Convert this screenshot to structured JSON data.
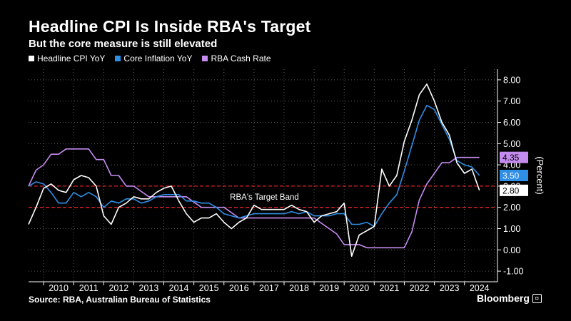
{
  "header": {
    "title": "Headline CPI Is Inside RBA's Target",
    "subtitle": "But the core measure is still elevated"
  },
  "footer": {
    "source": "Source:  RBA, Australian Bureau of Statistics",
    "brand": "Bloomberg"
  },
  "chart_data": {
    "type": "line",
    "ylabel": "(Percent)",
    "ylim": [
      -1.5,
      8.5
    ],
    "yticks": [
      -1,
      0,
      1,
      2,
      3,
      4,
      5,
      6,
      7,
      8
    ],
    "ytick_labels": [
      "-1.00",
      "0.00",
      "1.00",
      "2.00",
      "3.00",
      "4.00",
      "5.00",
      "6.00",
      "7.00",
      "8.00"
    ],
    "xlim": [
      2009.5,
      2025.1
    ],
    "x_categories": [
      "2010",
      "2011",
      "2012",
      "2013",
      "2014",
      "2015",
      "2016",
      "2017",
      "2018",
      "2019",
      "2020",
      "2021",
      "2022",
      "2023",
      "2024"
    ],
    "grid": true,
    "legend_position": "top-left",
    "target_band": {
      "label": "RBA's Target Band",
      "lower": 2,
      "upper": 3,
      "color": "#e0202a"
    },
    "series": [
      {
        "name": "Headline CPI YoY",
        "color": "#ffffff",
        "end_label": "2.80",
        "x": [
          2009.5,
          2009.75,
          2010.0,
          2010.25,
          2010.5,
          2010.75,
          2011.0,
          2011.25,
          2011.5,
          2011.75,
          2012.0,
          2012.25,
          2012.5,
          2012.75,
          2013.0,
          2013.25,
          2013.5,
          2013.75,
          2014.0,
          2014.25,
          2014.5,
          2014.75,
          2015.0,
          2015.25,
          2015.5,
          2015.75,
          2016.0,
          2016.25,
          2016.5,
          2016.75,
          2017.0,
          2017.25,
          2017.5,
          2017.75,
          2018.0,
          2018.25,
          2018.5,
          2018.75,
          2019.0,
          2019.25,
          2019.5,
          2019.75,
          2020.0,
          2020.25,
          2020.5,
          2020.75,
          2021.0,
          2021.25,
          2021.5,
          2021.75,
          2022.0,
          2022.25,
          2022.5,
          2022.75,
          2023.0,
          2023.25,
          2023.5,
          2023.75,
          2024.0,
          2024.25,
          2024.5
        ],
        "values": [
          1.2,
          2.0,
          2.9,
          3.1,
          2.8,
          2.7,
          3.3,
          3.5,
          3.4,
          3.0,
          1.6,
          1.2,
          2.0,
          2.2,
          2.5,
          2.4,
          2.4,
          2.7,
          2.9,
          3.0,
          2.3,
          1.7,
          1.3,
          1.5,
          1.5,
          1.7,
          1.3,
          1.0,
          1.3,
          1.5,
          2.1,
          1.9,
          1.9,
          1.9,
          1.9,
          2.1,
          1.9,
          1.8,
          1.3,
          1.6,
          1.7,
          1.8,
          2.2,
          -0.3,
          0.7,
          0.9,
          1.1,
          3.8,
          3.0,
          3.5,
          5.1,
          6.1,
          7.3,
          7.8,
          7.0,
          6.0,
          5.4,
          4.1,
          3.6,
          3.8,
          2.8
        ]
      },
      {
        "name": "Core Inflation YoY",
        "color": "#2f8fe6",
        "end_label": "3.50",
        "x": [
          2009.5,
          2009.75,
          2010.0,
          2010.25,
          2010.5,
          2010.75,
          2011.0,
          2011.25,
          2011.5,
          2011.75,
          2012.0,
          2012.25,
          2012.5,
          2012.75,
          2013.0,
          2013.25,
          2013.5,
          2013.75,
          2014.0,
          2014.25,
          2014.5,
          2014.75,
          2015.0,
          2015.25,
          2015.5,
          2015.75,
          2016.0,
          2016.25,
          2016.5,
          2016.75,
          2017.0,
          2017.25,
          2017.5,
          2017.75,
          2018.0,
          2018.25,
          2018.5,
          2018.75,
          2019.0,
          2019.25,
          2019.5,
          2019.75,
          2020.0,
          2020.25,
          2020.5,
          2020.75,
          2021.0,
          2021.25,
          2021.5,
          2021.75,
          2022.0,
          2022.25,
          2022.5,
          2022.75,
          2023.0,
          2023.25,
          2023.5,
          2023.75,
          2024.0,
          2024.25,
          2024.5
        ],
        "values": [
          3.0,
          3.2,
          3.1,
          2.7,
          2.2,
          2.2,
          2.7,
          2.5,
          2.7,
          2.5,
          2.0,
          2.3,
          2.2,
          2.4,
          2.4,
          2.2,
          2.3,
          2.5,
          2.6,
          2.6,
          2.6,
          2.3,
          2.3,
          2.2,
          2.2,
          2.0,
          1.7,
          1.6,
          1.5,
          1.6,
          1.7,
          1.7,
          1.7,
          1.7,
          1.7,
          1.8,
          1.7,
          1.8,
          1.6,
          1.6,
          1.6,
          1.7,
          1.7,
          1.2,
          1.2,
          1.3,
          1.1,
          1.7,
          2.2,
          2.6,
          3.7,
          4.9,
          6.1,
          6.8,
          6.6,
          5.9,
          5.2,
          4.2,
          4.0,
          3.9,
          3.5
        ]
      },
      {
        "name": "RBA Cash Rate",
        "color": "#c58cf0",
        "end_label": "4.35",
        "x": [
          2009.5,
          2009.75,
          2010.0,
          2010.25,
          2010.5,
          2010.75,
          2011.0,
          2011.25,
          2011.5,
          2011.75,
          2012.0,
          2012.25,
          2012.5,
          2012.75,
          2013.0,
          2013.25,
          2013.5,
          2013.75,
          2014.0,
          2014.25,
          2014.5,
          2014.75,
          2015.0,
          2015.25,
          2015.5,
          2015.75,
          2016.0,
          2016.25,
          2016.5,
          2016.75,
          2017.0,
          2017.25,
          2017.5,
          2017.75,
          2018.0,
          2018.25,
          2018.5,
          2018.75,
          2019.0,
          2019.25,
          2019.5,
          2019.75,
          2020.0,
          2020.25,
          2020.5,
          2020.75,
          2021.0,
          2021.25,
          2021.5,
          2021.75,
          2022.0,
          2022.25,
          2022.5,
          2022.75,
          2023.0,
          2023.25,
          2023.5,
          2023.75,
          2024.0,
          2024.25,
          2024.5
        ],
        "values": [
          3.0,
          3.75,
          4.0,
          4.5,
          4.5,
          4.75,
          4.75,
          4.75,
          4.75,
          4.25,
          4.25,
          3.5,
          3.5,
          3.0,
          3.0,
          2.75,
          2.5,
          2.5,
          2.5,
          2.5,
          2.5,
          2.5,
          2.25,
          2.0,
          2.0,
          2.0,
          2.0,
          1.75,
          1.5,
          1.5,
          1.5,
          1.5,
          1.5,
          1.5,
          1.5,
          1.5,
          1.5,
          1.5,
          1.5,
          1.25,
          1.0,
          0.75,
          0.25,
          0.25,
          0.25,
          0.1,
          0.1,
          0.1,
          0.1,
          0.1,
          0.1,
          0.85,
          2.35,
          3.1,
          3.6,
          4.1,
          4.1,
          4.35,
          4.35,
          4.35,
          4.35
        ]
      }
    ]
  }
}
